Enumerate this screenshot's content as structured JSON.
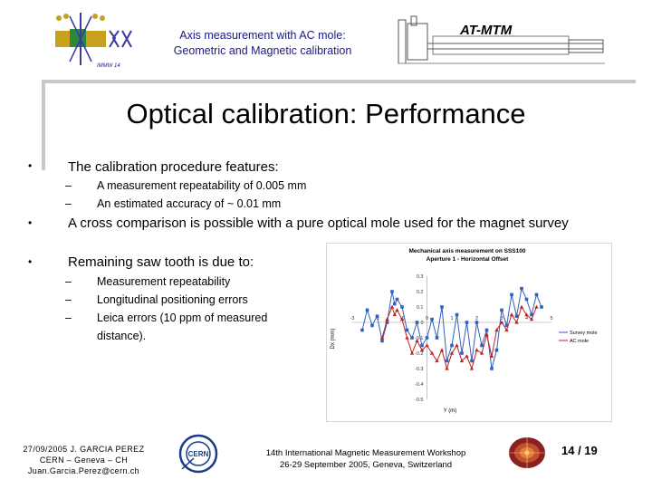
{
  "header": {
    "title_line1": "Axis measurement with AC mole:",
    "title_line2": "Geometric and Magnetic calibration",
    "brand": "AT-MTM",
    "logo_icon": "imm14-conference-logo-icon",
    "magnet_icon": "magnet-test-bench-drawing-icon"
  },
  "slide": {
    "title": "Optical calibration: Performance",
    "bullets": [
      {
        "text": "The calibration procedure features:",
        "subs": [
          "A measurement repeatability of 0.005 mm",
          "An estimated accuracy of ~ 0.01 mm"
        ]
      },
      {
        "text": "A cross comparison is possible with a pure optical mole used for the magnet survey",
        "subs": []
      },
      {
        "text": "Remaining saw tooth is due to:",
        "subs": [
          "Measurement repeatability",
          "Longitudinal positioning errors",
          "Leica errors (10 ppm of measured distance)."
        ]
      }
    ]
  },
  "chart_data": {
    "type": "line",
    "title": "Mechanical axis measurement on SSS100",
    "subtitle": "Aperture 1 - Horizontal Offset",
    "xlabel": "Y (m)",
    "ylabel": "Dx (mm)",
    "ylim": [
      -0.5,
      0.3
    ],
    "yticks": [
      "0.3",
      "0.2",
      "0.1",
      "0",
      "-0.1",
      "-0.2",
      "-0.3",
      "-0.4",
      "-0.5"
    ],
    "xlim": [
      -3,
      5
    ],
    "xticks": [
      "-3",
      "-2",
      "-1",
      "0",
      "1",
      "2",
      "3",
      "4",
      "5"
    ],
    "legend": "right",
    "series": [
      {
        "name": "Survey mole",
        "color": "#3060c0",
        "marker": "square",
        "x": [
          -2.6,
          -2.4,
          -2.2,
          -2.0,
          -1.8,
          -1.6,
          -1.4,
          -1.3,
          -1.2,
          -1.0,
          -0.8,
          -0.6,
          -0.4,
          -0.2,
          0.0,
          0.2,
          0.4,
          0.6,
          0.8,
          1.0,
          1.2,
          1.4,
          1.6,
          1.8,
          2.0,
          2.2,
          2.4,
          2.6,
          2.8,
          3.0,
          3.2,
          3.4,
          3.6,
          3.8,
          4.0,
          4.2,
          4.4,
          4.6
        ],
        "y": [
          -0.05,
          0.08,
          -0.02,
          0.04,
          -0.12,
          0.0,
          0.2,
          0.12,
          0.15,
          0.1,
          -0.05,
          -0.1,
          0.0,
          -0.15,
          -0.1,
          0.02,
          -0.1,
          0.1,
          -0.25,
          -0.15,
          0.05,
          -0.2,
          0.0,
          -0.25,
          0.0,
          -0.15,
          -0.05,
          -0.3,
          -0.18,
          0.08,
          -0.02,
          0.18,
          0.04,
          0.22,
          0.15,
          0.05,
          0.18,
          0.1
        ]
      },
      {
        "name": "AC mole",
        "color": "#c02020",
        "marker": "triangle",
        "x": [
          -1.8,
          -1.6,
          -1.4,
          -1.3,
          -1.2,
          -1.0,
          -0.8,
          -0.6,
          -0.4,
          -0.2,
          0.0,
          0.2,
          0.4,
          0.6,
          0.8,
          1.0,
          1.2,
          1.4,
          1.6,
          1.8,
          2.0,
          2.2,
          2.4,
          2.6,
          2.8,
          3.0,
          3.2,
          3.4,
          3.6,
          3.8,
          4.0,
          4.2,
          4.4
        ],
        "y": [
          -0.1,
          0.02,
          0.1,
          0.05,
          0.08,
          0.02,
          -0.1,
          -0.2,
          -0.12,
          -0.18,
          -0.15,
          -0.2,
          -0.25,
          -0.18,
          -0.3,
          -0.2,
          -0.15,
          -0.25,
          -0.22,
          -0.3,
          -0.18,
          -0.2,
          -0.08,
          -0.22,
          -0.05,
          0.0,
          -0.05,
          0.05,
          0.0,
          0.1,
          0.05,
          0.02,
          0.1
        ]
      }
    ]
  },
  "footer": {
    "author_line1": "27/09/2005 J. GARCIA PEREZ",
    "author_line2": "CERN – Geneva – CH",
    "author_line3": "Juan.Garcia.Perez@cern.ch",
    "event_line1": "14th International Magnetic Measurement Workshop",
    "event_line2": "26-29 September 2005, Geneva, Switzerland",
    "page": "14 / 19",
    "cern_icon": "cern-logo-icon",
    "lhc_icon": "lhc-logo-icon"
  },
  "colors": {
    "accent": "#1a1a80",
    "frame": "#c8c8c8",
    "survey": "#3060c0",
    "ac": "#c02020"
  }
}
